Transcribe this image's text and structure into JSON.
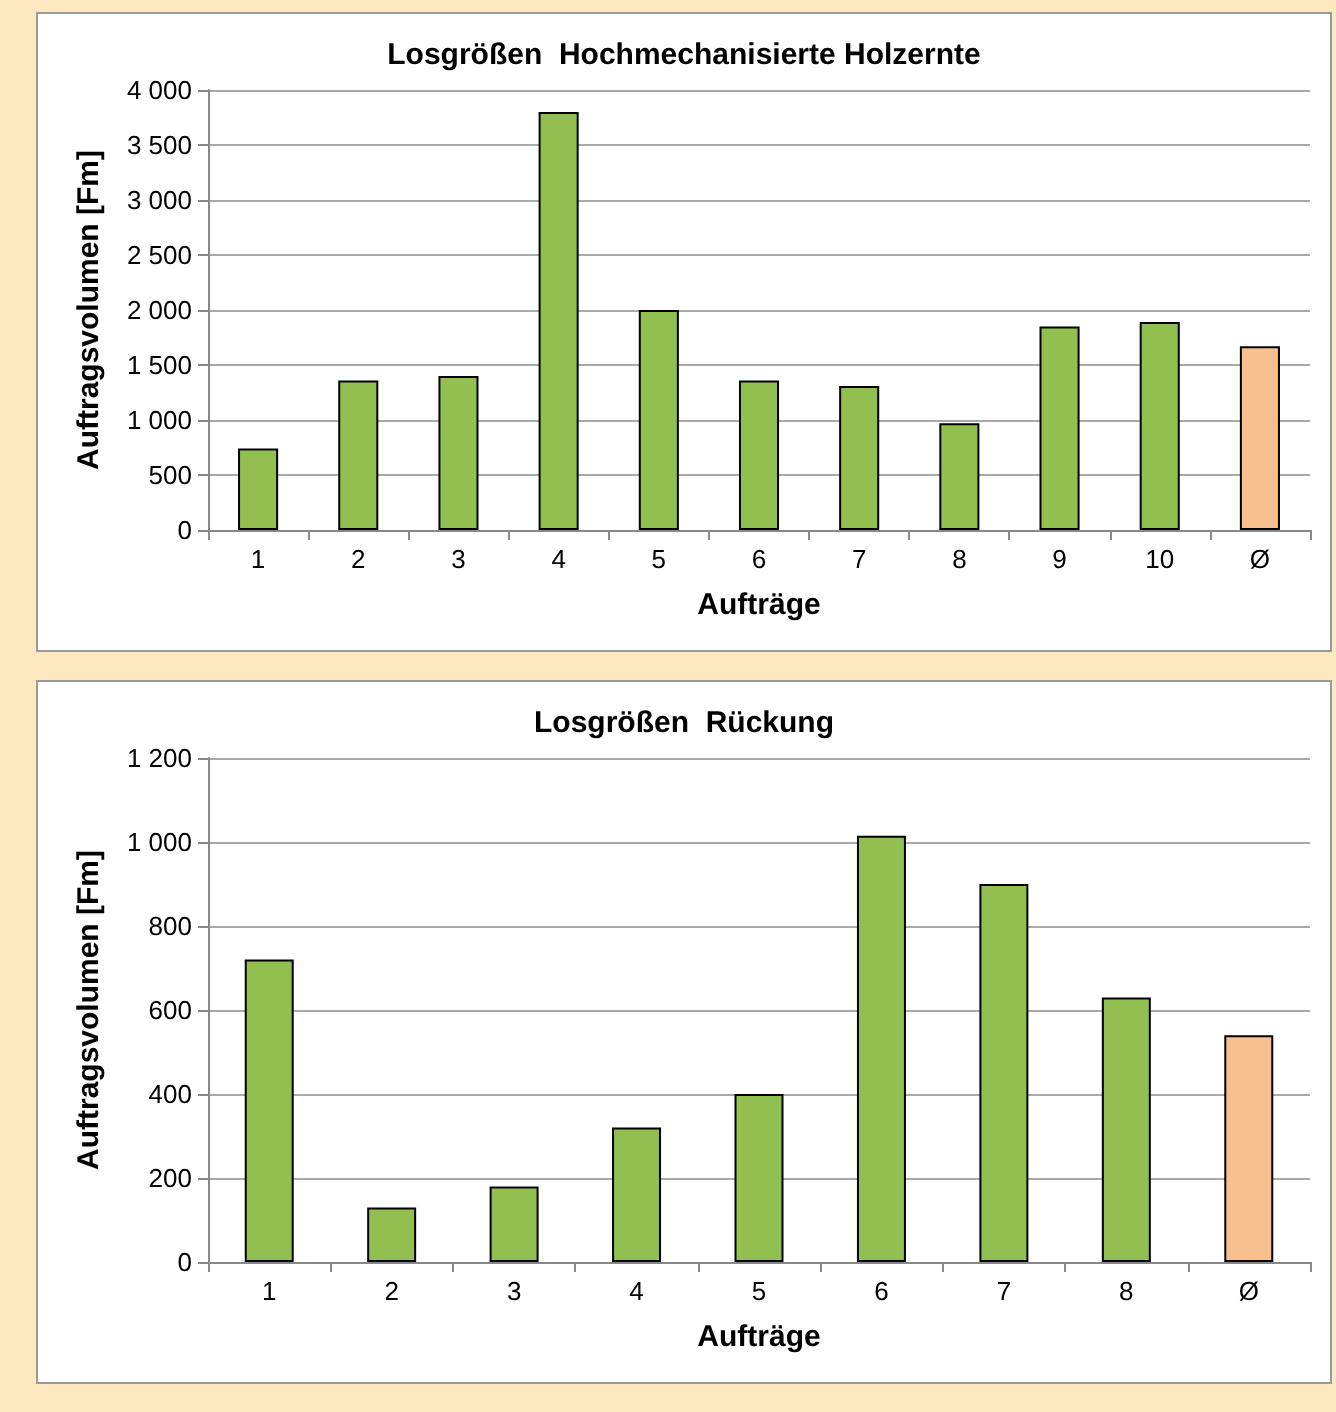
{
  "chart_data": [
    {
      "type": "bar",
      "title": "Losgrößen  Hochmechanisierte Holzernte",
      "xlabel": "Aufträge",
      "ylabel": "Auftragsvolumen [Fm]",
      "categories": [
        "1",
        "2",
        "3",
        "4",
        "5",
        "6",
        "7",
        "8",
        "9",
        "10",
        "Ø"
      ],
      "values": [
        740,
        1360,
        1400,
        3800,
        2000,
        1360,
        1310,
        970,
        1850,
        1890,
        1670
      ],
      "colors": [
        "#92c050",
        "#92c050",
        "#92c050",
        "#92c050",
        "#92c050",
        "#92c050",
        "#92c050",
        "#92c050",
        "#92c050",
        "#92c050",
        "#f8c08f"
      ],
      "ylim": [
        0,
        4000
      ],
      "yticks": [
        0,
        500,
        {
          "value": 1000,
          "label": "1 000"
        },
        {
          "value": 1500,
          "label": "1 500"
        },
        {
          "value": 2000,
          "label": "2 000"
        },
        {
          "value": 2500,
          "label": "2 500"
        },
        {
          "value": 3000,
          "label": "3 000"
        },
        {
          "value": 3500,
          "label": "3 500"
        },
        {
          "value": 4000,
          "label": "4 000"
        }
      ],
      "grid": "y"
    },
    {
      "type": "bar",
      "title": "Losgrößen  Rückung",
      "xlabel": "Aufträge",
      "ylabel": "Auftragsvolumen [Fm]",
      "categories": [
        "1",
        "2",
        "3",
        "4",
        "5",
        "6",
        "7",
        "8",
        "Ø"
      ],
      "values": [
        720,
        130,
        180,
        320,
        400,
        1015,
        900,
        630,
        540
      ],
      "colors": [
        "#92c050",
        "#92c050",
        "#92c050",
        "#92c050",
        "#92c050",
        "#92c050",
        "#92c050",
        "#92c050",
        "#f8c08f"
      ],
      "ylim": [
        0,
        1200
      ],
      "yticks": [
        0,
        200,
        400,
        600,
        800,
        {
          "value": 1000,
          "label": "1 000"
        },
        {
          "value": 1200,
          "label": "1 200"
        }
      ],
      "grid": "y"
    }
  ]
}
